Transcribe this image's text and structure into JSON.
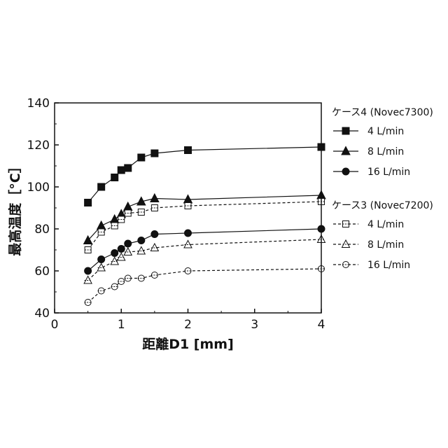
{
  "chart_data": {
    "type": "line",
    "xlabel": "距離D1 [mm]",
    "ylabel": "最高温度［°C］",
    "xlim": [
      0,
      4
    ],
    "ylim": [
      40,
      140
    ],
    "x_ticks": [
      0,
      1,
      2,
      3,
      4
    ],
    "y_ticks": [
      40,
      60,
      80,
      100,
      120,
      140
    ],
    "grid": false,
    "legend_position": "right",
    "legend_groups": [
      {
        "title": "ケース4 (Novec7300)",
        "series": [
          0,
          1,
          2
        ]
      },
      {
        "title": "ケース3 (Novec7200)",
        "series": [
          3,
          4,
          5
        ]
      }
    ],
    "series": [
      {
        "name": "4 L/min",
        "group": "ケース4 (Novec7300)",
        "marker": "square",
        "filled": true,
        "dash": "solid",
        "x": [
          0.5,
          0.7,
          0.9,
          1.0,
          1.1,
          1.3,
          1.5,
          2.0,
          4.0
        ],
        "y": [
          92.5,
          100,
          104.5,
          108,
          109,
          114,
          116,
          117.5,
          119
        ]
      },
      {
        "name": "8 L/min",
        "group": "ケース4 (Novec7300)",
        "marker": "triangle",
        "filled": true,
        "dash": "solid",
        "x": [
          0.5,
          0.7,
          0.9,
          1.0,
          1.1,
          1.3,
          1.5,
          2.0,
          4.0
        ],
        "y": [
          74.5,
          81.5,
          84.5,
          87,
          90.5,
          93,
          94.5,
          94,
          96
        ]
      },
      {
        "name": "16 L/min",
        "group": "ケース4 (Novec7300)",
        "marker": "circle",
        "filled": true,
        "dash": "solid",
        "x": [
          0.5,
          0.7,
          0.9,
          1.0,
          1.1,
          1.3,
          1.5,
          2.0,
          4.0
        ],
        "y": [
          60,
          65.5,
          68.5,
          70.5,
          73,
          74.5,
          77.5,
          78,
          80
        ]
      },
      {
        "name": "4 L/min",
        "group": "ケース3 (Novec7200)",
        "marker": "square",
        "filled": false,
        "dash": "dashed",
        "x": [
          0.5,
          0.7,
          0.9,
          1.0,
          1.1,
          1.3,
          1.5,
          2.0,
          4.0
        ],
        "y": [
          70,
          78.5,
          81.5,
          84.5,
          87.5,
          88,
          90,
          91,
          93
        ]
      },
      {
        "name": "8 L/min",
        "group": "ケース3 (Novec7200)",
        "marker": "triangle",
        "filled": false,
        "dash": "dashed",
        "x": [
          0.5,
          0.7,
          0.9,
          1.0,
          1.1,
          1.3,
          1.5,
          2.0,
          4.0
        ],
        "y": [
          55.5,
          61.5,
          64.5,
          66.5,
          69,
          69.5,
          71,
          72.5,
          75
        ]
      },
      {
        "name": "16 L/min",
        "group": "ケース3 (Novec7200)",
        "marker": "circle",
        "filled": false,
        "dash": "dashed",
        "x": [
          0.5,
          0.7,
          0.9,
          1.0,
          1.1,
          1.3,
          1.5,
          2.0,
          4.0
        ],
        "y": [
          45,
          50.5,
          52.5,
          55,
          56.5,
          56.5,
          58,
          60,
          61
        ]
      }
    ]
  }
}
